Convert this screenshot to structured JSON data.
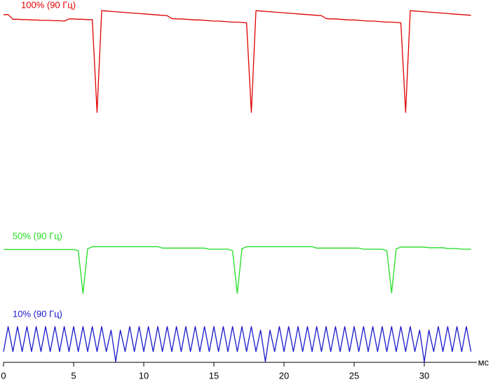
{
  "chart_data": {
    "type": "line",
    "x_unit": "мс",
    "xlim": [
      0,
      33.5
    ],
    "xticks": [
      0,
      5,
      10,
      15,
      20,
      25,
      30
    ],
    "ylim": [
      0,
      100
    ],
    "x": [
      0,
      0.33,
      0.67,
      1,
      1.33,
      1.67,
      2,
      2.33,
      2.67,
      3,
      3.33,
      3.67,
      4,
      4.33,
      4.67,
      5,
      5.33,
      5.67,
      6,
      6.33,
      6.67,
      7,
      7.33,
      7.67,
      8,
      8.33,
      8.67,
      9,
      9.33,
      9.67,
      10,
      10.33,
      10.67,
      11,
      11.33,
      11.67,
      12,
      12.33,
      12.67,
      13,
      13.33,
      13.67,
      14,
      14.33,
      14.67,
      15,
      15.33,
      15.67,
      16,
      16.33,
      16.67,
      17,
      17.33,
      17.67,
      18,
      18.33,
      18.67,
      19,
      19.33,
      19.67,
      20,
      20.33,
      20.67,
      21,
      21.33,
      21.67,
      22,
      22.33,
      22.67,
      23,
      23.33,
      23.67,
      24,
      24.33,
      24.67,
      25,
      25.33,
      25.67,
      26,
      26.33,
      26.67,
      27,
      27.33,
      27.67,
      28,
      28.33,
      28.67,
      29,
      29.33,
      29.67,
      30,
      30.33,
      30.67,
      31,
      31.33,
      31.67,
      32,
      32.33,
      32.67,
      33,
      33.33
    ],
    "series": [
      {
        "name": "100% (90 Гц)",
        "color": "#e00000",
        "values": [
          96.9,
          96.9,
          95.6,
          95.6,
          95.5,
          95.5,
          95.4,
          95.4,
          95.3,
          95.3,
          95.3,
          95.2,
          95.2,
          95.1,
          95.7,
          95.7,
          95.6,
          95.6,
          95.5,
          95.5,
          69.6,
          98,
          97.9,
          97.8,
          97.7,
          97.6,
          97.5,
          97.4,
          97.3,
          97.2,
          97.1,
          97,
          96.9,
          96.8,
          96.7,
          96.6,
          95.8,
          95.7,
          95.7,
          95.6,
          95.5,
          95.4,
          95.4,
          95.3,
          95.2,
          95.1,
          95.1,
          95,
          94.9,
          94.8,
          94.8,
          94.7,
          94.6,
          69.6,
          98,
          97.9,
          97.8,
          97.7,
          97.6,
          97.5,
          97.4,
          97.3,
          97.2,
          97.1,
          97,
          96.9,
          96.8,
          96.7,
          96.6,
          95.8,
          95.7,
          95.7,
          95.6,
          95.5,
          95.4,
          95.4,
          95.3,
          95.2,
          95.1,
          95.1,
          95,
          94.9,
          94.8,
          94.8,
          94.7,
          94.6,
          69.6,
          98,
          97.9,
          97.8,
          97.7,
          97.6,
          97.5,
          97.4,
          97.3,
          97.2,
          97.1,
          97,
          96.9,
          96.8,
          96.7
        ]
      },
      {
        "name": "50% (90 Гц)",
        "color": "#22dd22",
        "values": [
          31.3,
          31.3,
          31.3,
          31.3,
          31.3,
          31.3,
          31.3,
          31.3,
          31.3,
          31.3,
          31.3,
          31.3,
          31.3,
          31.3,
          31.3,
          31.3,
          31,
          19,
          31.5,
          32.1,
          32.1,
          32.1,
          32.1,
          32.1,
          32.1,
          32.1,
          32.1,
          32.1,
          32.1,
          32.1,
          32.1,
          32.1,
          32.1,
          32.1,
          31.7,
          31.7,
          31.7,
          31.7,
          31.7,
          31.7,
          31.7,
          31.7,
          31.7,
          31.7,
          31.4,
          31.4,
          31.4,
          31.4,
          31.4,
          31,
          19,
          31.5,
          32.1,
          32.1,
          32.1,
          32.1,
          32.1,
          32.1,
          32.1,
          32.1,
          32.1,
          32.1,
          32.1,
          32.1,
          32.1,
          32.1,
          32.1,
          31.7,
          31.7,
          31.7,
          31.7,
          31.7,
          31.7,
          31.7,
          31.7,
          31.7,
          31.7,
          31.4,
          31.4,
          31.4,
          31.4,
          31.4,
          31,
          19.2,
          31.5,
          32,
          32,
          32,
          32,
          32,
          32,
          31.8,
          31.8,
          31.8,
          31.8,
          31.6,
          31.6,
          31.6,
          31.4,
          31.4,
          31.4
        ]
      },
      {
        "name": "10% (90 Гц)",
        "color": "#1a1acc",
        "values": [
          2.8,
          9.8,
          2.8,
          9.8,
          2.8,
          9.8,
          2.8,
          9.8,
          2.8,
          9.8,
          2.8,
          9.8,
          2.8,
          9.8,
          2.8,
          9.8,
          2.8,
          9.8,
          2.8,
          9.8,
          2.8,
          9.8,
          2.8,
          8.8,
          0,
          8.8,
          2.8,
          9.8,
          2.8,
          9.8,
          2.8,
          9.8,
          2.8,
          9.8,
          2.8,
          9.8,
          2.8,
          9.8,
          2.8,
          9.8,
          2.8,
          9.8,
          2.8,
          9.8,
          2.8,
          9.8,
          2.8,
          9.8,
          2.8,
          9.8,
          2.8,
          9.8,
          2.8,
          9.8,
          2.8,
          8.8,
          0,
          8.8,
          2.8,
          9.8,
          2.8,
          9.8,
          2.8,
          9.8,
          2.8,
          9.8,
          2.8,
          9.8,
          2.8,
          9.8,
          2.8,
          9.8,
          2.8,
          9.8,
          2.8,
          9.8,
          2.8,
          9.8,
          2.8,
          9.8,
          2.8,
          9.8,
          2.8,
          9.8,
          2.8,
          9.8,
          2.8,
          9.8,
          2.8,
          8.8,
          0,
          8.8,
          2.8,
          9.8,
          2.8,
          9.8,
          2.8,
          9.8,
          2.8,
          9.8,
          2.8
        ]
      }
    ]
  }
}
